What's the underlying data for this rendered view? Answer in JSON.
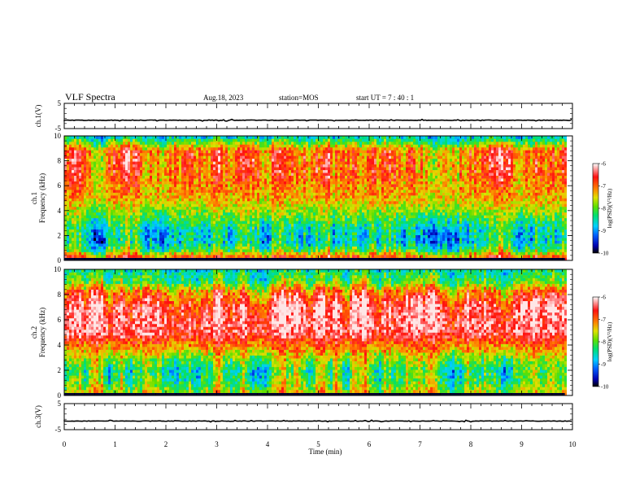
{
  "header": {
    "title": "VLF Spectra",
    "date": "Aug.18, 2023",
    "station": "station=MOS",
    "start": "start  UT =   7 : 40 : 1"
  },
  "chart_data": [
    {
      "type": "line",
      "ylabel": "ch.1(V)",
      "ylim": [
        -5,
        5
      ],
      "y_ticks": [
        "5",
        "-5"
      ],
      "y_level": -1.7,
      "xlim": [
        0,
        10
      ]
    },
    {
      "type": "heatmap",
      "ylabel": "ch.1\nFrequency (kHz)",
      "ylim": [
        0,
        10
      ],
      "y_ticks": [
        "0",
        "2",
        "4",
        "6",
        "8",
        "10"
      ],
      "xlim": [
        0,
        10
      ],
      "data_xmax": 9.85,
      "profile": [
        {
          "f": 0.3,
          "v": -6.9
        },
        {
          "f": 0.8,
          "v": -8.0
        },
        {
          "f": 1.5,
          "v": -8.6
        },
        {
          "f": 2.5,
          "v": -8.5
        },
        {
          "f": 3.5,
          "v": -8.0
        },
        {
          "f": 5.0,
          "v": -7.3
        },
        {
          "f": 7.0,
          "v": -6.9
        },
        {
          "f": 8.8,
          "v": -6.9
        },
        {
          "f": 9.4,
          "v": -7.8
        },
        {
          "f": 9.9,
          "v": -8.6
        }
      ],
      "colorbar": {
        "label": "log(PSD)(V²/Hz)",
        "range": [
          -10,
          -6
        ],
        "ticks": [
          "-6",
          "-7",
          "-8",
          "-9",
          "-10"
        ]
      }
    },
    {
      "type": "heatmap",
      "ylabel": "ch.2\nFrequency (kHz)",
      "ylim": [
        0,
        10
      ],
      "y_ticks": [
        "0",
        "2",
        "4",
        "6",
        "8",
        "10"
      ],
      "xlim": [
        0,
        10
      ],
      "data_xmax": 9.85,
      "profile": [
        {
          "f": 0.3,
          "v": -7.6
        },
        {
          "f": 1.0,
          "v": -8.0
        },
        {
          "f": 2.0,
          "v": -8.2
        },
        {
          "f": 3.0,
          "v": -7.7
        },
        {
          "f": 4.0,
          "v": -7.0
        },
        {
          "f": 5.0,
          "v": -6.3
        },
        {
          "f": 7.0,
          "v": -6.3
        },
        {
          "f": 8.2,
          "v": -6.9
        },
        {
          "f": 9.0,
          "v": -8.0
        },
        {
          "f": 9.9,
          "v": -8.4
        }
      ],
      "colorbar": {
        "label": "log(PSD)(V²/Hz)",
        "range": [
          -10,
          -6
        ],
        "ticks": [
          "-6",
          "-7",
          "-8",
          "-9",
          "-10"
        ]
      }
    },
    {
      "type": "line",
      "ylabel": "ch.3(V)",
      "ylim": [
        -5,
        5
      ],
      "y_ticks": [
        "5",
        "-5"
      ],
      "y_level": -1.7,
      "xlim": [
        0,
        10
      ],
      "xlabel": "Time (min)",
      "x_ticks": [
        "0",
        "1",
        "2",
        "3",
        "4",
        "5",
        "6",
        "7",
        "8",
        "9",
        "10"
      ]
    }
  ]
}
